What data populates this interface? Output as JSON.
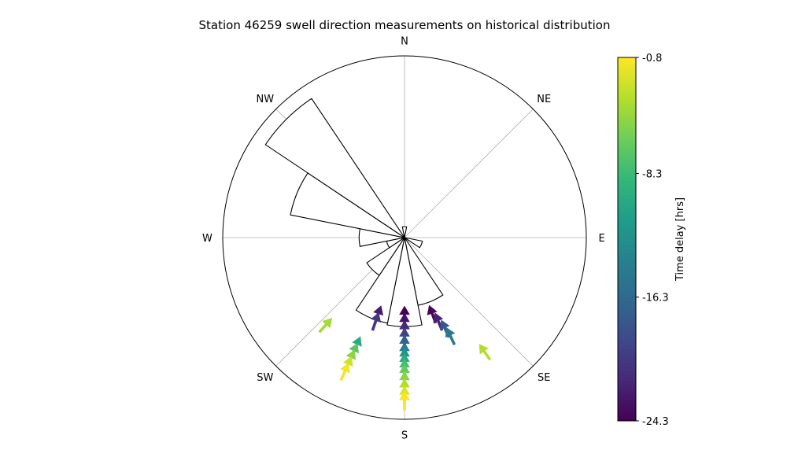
{
  "chart_data": {
    "type": "polar-rose-quiver",
    "title": "Station 46259 swell direction measurements on historical distribution",
    "compass_labels": [
      "N",
      "NE",
      "E",
      "SE",
      "S",
      "SW",
      "W",
      "NW"
    ],
    "grid": true,
    "rlim": [
      0,
      1.0
    ],
    "histogram": {
      "bin_width_deg": 22.5,
      "bins": [
        {
          "center_deg": 0,
          "radius": 0.06
        },
        {
          "center_deg": 22.5,
          "radius": 0.0
        },
        {
          "center_deg": 45,
          "radius": 0.0
        },
        {
          "center_deg": 67.5,
          "radius": 0.0
        },
        {
          "center_deg": 90,
          "radius": 0.0
        },
        {
          "center_deg": 112.5,
          "radius": 0.1
        },
        {
          "center_deg": 135,
          "radius": 0.0
        },
        {
          "center_deg": 157.5,
          "radius": 0.38
        },
        {
          "center_deg": 180,
          "radius": 0.49
        },
        {
          "center_deg": 202.5,
          "radius": 0.48
        },
        {
          "center_deg": 225,
          "radius": 0.25
        },
        {
          "center_deg": 247.5,
          "radius": 0.1
        },
        {
          "center_deg": 270,
          "radius": 0.25
        },
        {
          "center_deg": 292.5,
          "radius": 0.64
        },
        {
          "center_deg": 315,
          "radius": 0.92
        },
        {
          "center_deg": 337.5,
          "radius": 0.0
        }
      ]
    },
    "measurements": [
      {
        "dir_deg": 180,
        "r": 0.48,
        "delay_hrs": -24.3
      },
      {
        "dir_deg": 180,
        "r": 0.52,
        "delay_hrs": -23.0
      },
      {
        "dir_deg": 180,
        "r": 0.56,
        "delay_hrs": -21.5
      },
      {
        "dir_deg": 180,
        "r": 0.6,
        "delay_hrs": -19.5
      },
      {
        "dir_deg": 180,
        "r": 0.64,
        "delay_hrs": -17.0
      },
      {
        "dir_deg": 180,
        "r": 0.68,
        "delay_hrs": -14.5
      },
      {
        "dir_deg": 180,
        "r": 0.71,
        "delay_hrs": -12.0
      },
      {
        "dir_deg": 180,
        "r": 0.74,
        "delay_hrs": -10.0
      },
      {
        "dir_deg": 180,
        "r": 0.77,
        "delay_hrs": -8.0
      },
      {
        "dir_deg": 180,
        "r": 0.8,
        "delay_hrs": -6.5
      },
      {
        "dir_deg": 180,
        "r": 0.84,
        "delay_hrs": -5.0
      },
      {
        "dir_deg": 180,
        "r": 0.88,
        "delay_hrs": -3.5
      },
      {
        "dir_deg": 180,
        "r": 0.92,
        "delay_hrs": -2.0
      },
      {
        "dir_deg": 180,
        "r": 0.95,
        "delay_hrs": -1.0
      },
      {
        "dir_deg": 160,
        "r": 0.5,
        "delay_hrs": -24.0
      },
      {
        "dir_deg": 158,
        "r": 0.55,
        "delay_hrs": -22.0
      },
      {
        "dir_deg": 156,
        "r": 0.6,
        "delay_hrs": -18.0
      },
      {
        "dir_deg": 155,
        "r": 0.65,
        "delay_hrs": -15.0
      },
      {
        "dir_deg": 199,
        "r": 0.5,
        "delay_hrs": -22.5
      },
      {
        "dir_deg": 199,
        "r": 0.54,
        "delay_hrs": -20.5
      },
      {
        "dir_deg": 204,
        "r": 0.7,
        "delay_hrs": -10.0
      },
      {
        "dir_deg": 204,
        "r": 0.74,
        "delay_hrs": -7.0
      },
      {
        "dir_deg": 204,
        "r": 0.78,
        "delay_hrs": -5.0
      },
      {
        "dir_deg": 204,
        "r": 0.82,
        "delay_hrs": -2.5
      },
      {
        "dir_deg": 204,
        "r": 0.86,
        "delay_hrs": -1.2
      },
      {
        "dir_deg": 222,
        "r": 0.7,
        "delay_hrs": -4.0
      },
      {
        "dir_deg": 145,
        "r": 0.82,
        "delay_hrs": -3.5
      }
    ],
    "colorbar": {
      "label": "Time delay [hrs]",
      "min": -24.3,
      "max": -0.8,
      "tick_labels": [
        "-0.8",
        "-8.3",
        "-16.3",
        "-24.3"
      ],
      "ticks": [
        -0.8,
        -8.3,
        -16.3,
        -24.3
      ],
      "colormap": "viridis",
      "colormap_stops": [
        "#440154",
        "#482878",
        "#3e4989",
        "#31688e",
        "#26828e",
        "#1f9e89",
        "#35b779",
        "#6ece58",
        "#b5de2b",
        "#fde725"
      ]
    }
  }
}
